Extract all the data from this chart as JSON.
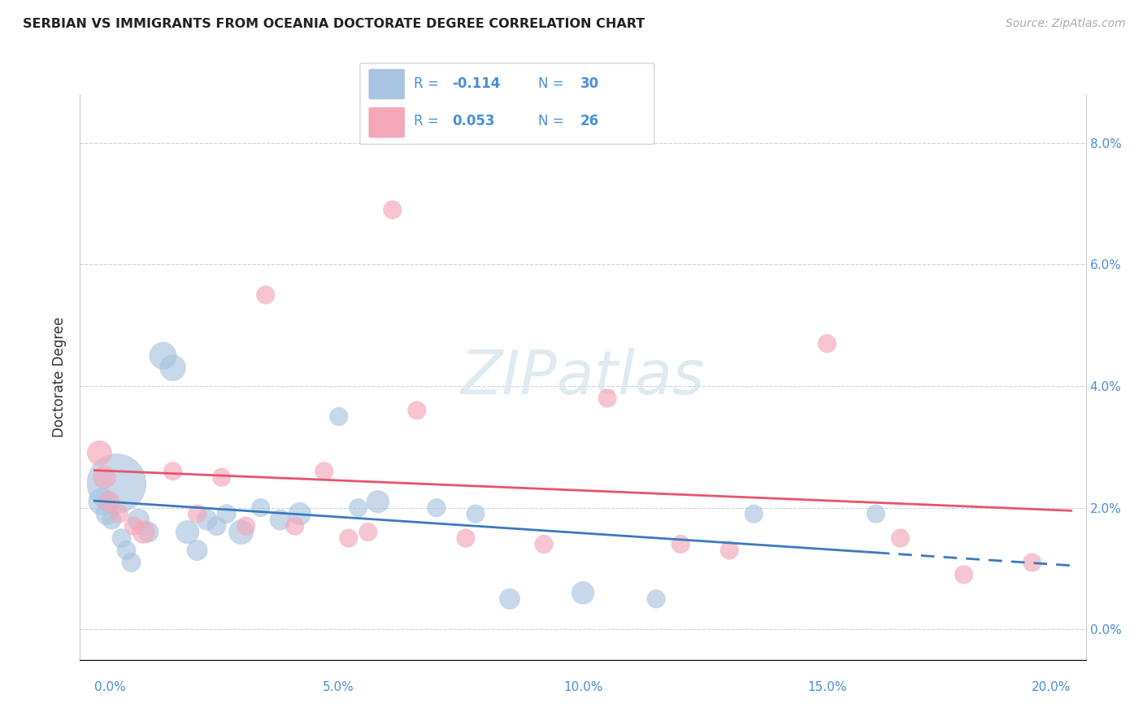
{
  "title": "SERBIAN VS IMMIGRANTS FROM OCEANIA DOCTORATE DEGREE CORRELATION CHART",
  "source": "Source: ZipAtlas.com",
  "ylabel": "Doctorate Degree",
  "xlabel_ticks": [
    "0.0%",
    "5.0%",
    "10.0%",
    "15.0%",
    "20.0%"
  ],
  "xlabel_vals": [
    0.0,
    5.0,
    10.0,
    15.0,
    20.0
  ],
  "ylabel_ticks_right": [
    "0.0%",
    "2.0%",
    "4.0%",
    "6.0%",
    "8.0%"
  ],
  "ylabel_vals": [
    0.0,
    2.0,
    4.0,
    6.0,
    8.0
  ],
  "xlim": [
    -0.3,
    20.3
  ],
  "ylim": [
    -0.5,
    8.8
  ],
  "serbian_R": -0.114,
  "serbian_N": 30,
  "oceania_R": 0.053,
  "oceania_N": 26,
  "serbian_color": "#a8c4e0",
  "oceania_color": "#f4a7b9",
  "serbian_line_color": "#3a7abf",
  "oceania_line_color": "#e8546a",
  "legend_text_color": "#4a90d9",
  "watermark_color": "#dce8f0",
  "serbian_x": [
    0.15,
    0.25,
    0.35,
    0.45,
    0.55,
    0.65,
    0.75,
    0.9,
    1.1,
    1.4,
    1.6,
    1.9,
    2.1,
    2.3,
    2.5,
    2.7,
    3.0,
    3.4,
    3.8,
    4.2,
    5.0,
    5.4,
    5.8,
    7.0,
    7.8,
    8.5,
    10.0,
    11.5,
    13.5,
    16.0
  ],
  "serbian_y": [
    2.1,
    1.9,
    1.8,
    2.4,
    1.5,
    1.3,
    1.1,
    1.8,
    1.6,
    4.5,
    4.3,
    1.6,
    1.3,
    1.8,
    1.7,
    1.9,
    1.6,
    2.0,
    1.8,
    1.9,
    3.5,
    2.0,
    2.1,
    2.0,
    1.9,
    0.5,
    0.6,
    0.5,
    1.9,
    1.9
  ],
  "serbian_size": [
    600,
    400,
    300,
    2800,
    300,
    300,
    300,
    400,
    350,
    600,
    550,
    450,
    350,
    350,
    300,
    300,
    500,
    280,
    350,
    420,
    280,
    280,
    420,
    280,
    280,
    350,
    420,
    280,
    280,
    280
  ],
  "oceania_x": [
    0.1,
    0.2,
    0.3,
    0.5,
    0.8,
    1.0,
    1.6,
    2.1,
    2.6,
    3.1,
    3.5,
    4.1,
    4.7,
    5.2,
    5.6,
    6.1,
    6.6,
    7.6,
    9.2,
    10.5,
    12.0,
    13.0,
    15.0,
    16.5,
    17.8,
    19.2
  ],
  "oceania_y": [
    2.9,
    2.5,
    2.1,
    1.9,
    1.7,
    1.6,
    2.6,
    1.9,
    2.5,
    1.7,
    5.5,
    1.7,
    2.6,
    1.5,
    1.6,
    6.9,
    3.6,
    1.5,
    1.4,
    3.8,
    1.4,
    1.3,
    4.7,
    1.5,
    0.9,
    1.1
  ],
  "oceania_size": [
    500,
    430,
    350,
    280,
    280,
    420,
    280,
    280,
    280,
    280,
    280,
    280,
    280,
    280,
    280,
    280,
    280,
    280,
    280,
    280,
    280,
    280,
    280,
    280,
    280,
    280
  ]
}
